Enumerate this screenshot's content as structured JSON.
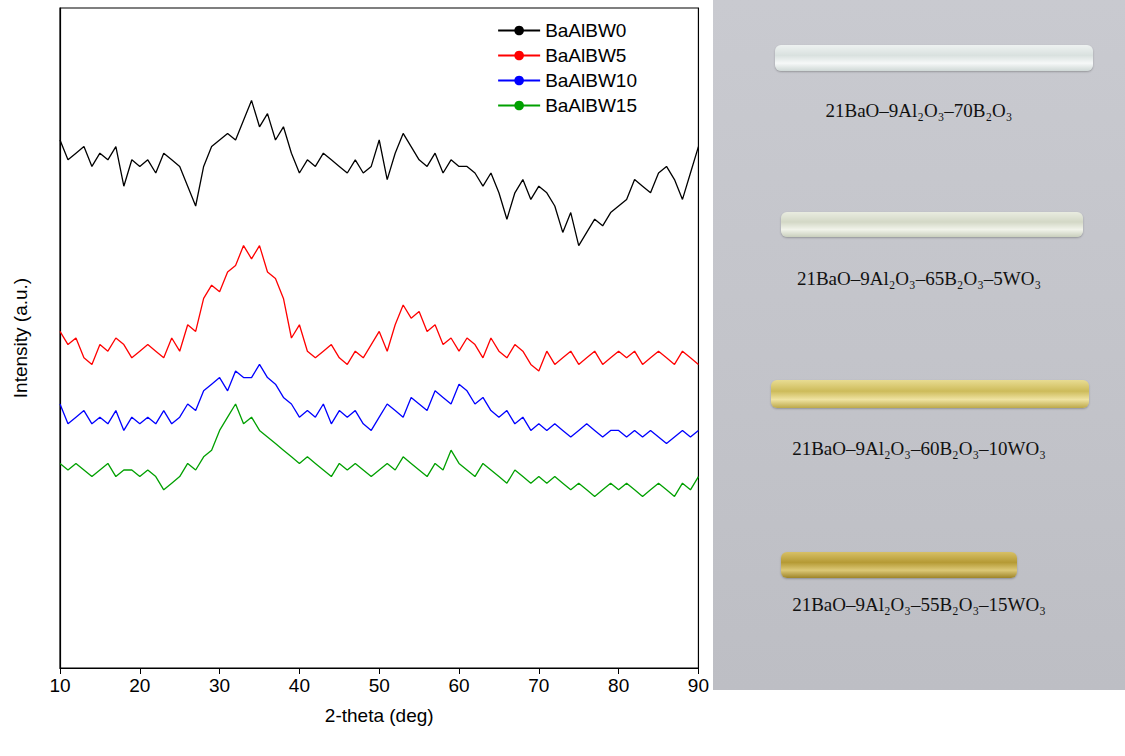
{
  "chart_data": {
    "type": "line",
    "xlabel": "2-theta (deg)",
    "ylabel": "Intensity (a.u.)",
    "x": [
      10,
      11,
      12,
      13,
      14,
      15,
      16,
      17,
      18,
      19,
      20,
      21,
      22,
      23,
      24,
      25,
      26,
      27,
      28,
      29,
      30,
      31,
      32,
      33,
      34,
      35,
      36,
      37,
      38,
      39,
      40,
      41,
      42,
      43,
      44,
      45,
      46,
      47,
      48,
      49,
      50,
      51,
      52,
      53,
      54,
      55,
      56,
      57,
      58,
      59,
      60,
      61,
      62,
      63,
      64,
      65,
      66,
      67,
      68,
      69,
      70,
      71,
      72,
      73,
      74,
      75,
      76,
      77,
      78,
      79,
      80,
      81,
      82,
      83,
      84,
      85,
      86,
      87,
      88,
      89,
      90
    ],
    "xlim": [
      10,
      90
    ],
    "xticks": [
      10,
      20,
      30,
      40,
      50,
      60,
      70,
      80,
      90
    ],
    "ylim": [
      0,
      100
    ],
    "tick_labels": "x",
    "grid": false,
    "legend": "upper right",
    "series": [
      {
        "name": "BaAlBW0",
        "color": "#000000",
        "values": [
          80,
          77,
          78,
          79,
          76,
          78,
          77,
          79,
          73,
          77,
          76,
          77,
          75,
          78,
          77,
          76,
          73,
          70,
          76,
          79,
          80,
          81,
          80,
          83,
          86,
          82,
          84,
          80,
          82,
          78,
          75,
          77,
          76,
          78,
          77,
          76,
          75,
          77,
          75,
          76,
          80,
          74,
          78,
          81,
          79,
          77,
          76,
          78,
          75,
          77,
          76,
          76,
          75,
          73,
          75,
          72,
          68,
          72,
          74,
          71,
          73,
          72,
          70,
          66,
          69,
          64,
          66,
          68,
          67,
          69,
          70,
          71,
          74,
          73,
          72,
          75,
          76,
          74,
          71,
          75,
          79
        ]
      },
      {
        "name": "BaAlBW5",
        "color": "#ff0000",
        "values": [
          51,
          49,
          50,
          47,
          46,
          49,
          48,
          50,
          49,
          47,
          48,
          49,
          48,
          47,
          50,
          48,
          52,
          51,
          56,
          58,
          57,
          60,
          61,
          64,
          62,
          64,
          60,
          59,
          56,
          50,
          52,
          48,
          47,
          48,
          49,
          47,
          46,
          48,
          47,
          49,
          51,
          48,
          52,
          55,
          53,
          54,
          51,
          52,
          49,
          50,
          48,
          50,
          49,
          47,
          50,
          48,
          47,
          49,
          48,
          46,
          45,
          48,
          46,
          47,
          48,
          46,
          47,
          48,
          46,
          47,
          48,
          47,
          48,
          46,
          47,
          48,
          47,
          46,
          48,
          47,
          46
        ]
      },
      {
        "name": "BaAlBW10",
        "color": "#0000ff",
        "values": [
          40,
          37,
          38,
          39,
          37,
          38,
          37,
          39,
          36,
          38,
          37,
          38,
          37,
          39,
          37,
          38,
          40,
          39,
          42,
          43,
          44,
          42,
          45,
          44,
          44,
          46,
          44,
          43,
          41,
          40,
          38,
          39,
          38,
          40,
          37,
          39,
          38,
          39,
          37,
          36,
          38,
          40,
          39,
          38,
          41,
          40,
          39,
          42,
          41,
          40,
          43,
          42,
          40,
          41,
          39,
          38,
          39,
          37,
          38,
          36,
          37,
          36,
          37,
          36,
          35,
          36,
          37,
          36,
          35,
          36,
          36,
          35,
          36,
          35,
          36,
          35,
          34,
          35,
          36,
          35,
          36
        ]
      },
      {
        "name": "BaAlBW15",
        "color": "#00a000",
        "values": [
          31,
          30,
          31,
          30,
          29,
          30,
          31,
          29,
          30,
          30,
          29,
          30,
          29,
          27,
          28,
          29,
          31,
          30,
          32,
          33,
          36,
          38,
          40,
          37,
          38,
          36,
          35,
          34,
          33,
          32,
          31,
          32,
          31,
          30,
          29,
          31,
          30,
          31,
          30,
          29,
          30,
          31,
          30,
          32,
          31,
          30,
          29,
          31,
          30,
          33,
          31,
          30,
          29,
          31,
          30,
          29,
          28,
          30,
          29,
          28,
          29,
          28,
          29,
          28,
          27,
          28,
          27,
          26,
          27,
          28,
          27,
          28,
          27,
          26,
          27,
          28,
          27,
          26,
          28,
          27,
          29
        ]
      }
    ]
  },
  "photo": {
    "labels": [
      "21BaO–9Al₂O₃–70B₂O₃",
      "21BaO–9Al₂O₃–65B₂O₃–5WO₃",
      "21BaO–9Al₂O₃–60B₂O₃–10WO₃",
      "21BaO–9Al₂O₃–55B₂O₃–15WO₃"
    ]
  }
}
